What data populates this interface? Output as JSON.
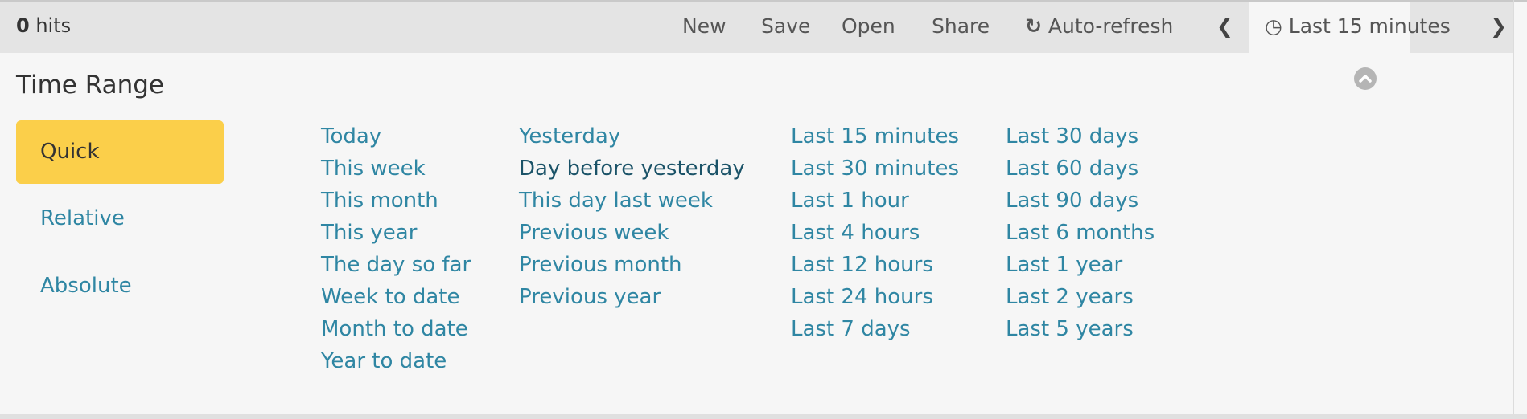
{
  "header": {
    "hits_count": "0",
    "hits_label": "hits",
    "buttons": [
      "New",
      "Save",
      "Open",
      "Share",
      "Auto-refresh"
    ],
    "time_label": "Last 15 minutes"
  },
  "panel": {
    "title": "Time Range",
    "modes": [
      "Quick",
      "Relative",
      "Absolute"
    ],
    "selected_mode": "Quick",
    "columns": [
      [
        "Today",
        "This week",
        "This month",
        "This year",
        "The day so far",
        "Week to date",
        "Month to date",
        "Year to date"
      ],
      [
        "Yesterday",
        "Day before yesterday",
        "This day last week",
        "Previous week",
        "Previous month",
        "Previous year"
      ],
      [
        "Last 15 minutes",
        "Last 30 minutes",
        "Last 1 hour",
        "Last 4 hours",
        "Last 12 hours",
        "Last 24 hours",
        "Last 7 days"
      ],
      [
        "Last 30 days",
        "Last 60 days",
        "Last 90 days",
        "Last 6 months",
        "Last 1 year",
        "Last 2 years",
        "Last 5 years"
      ]
    ],
    "hovered_option": "Day before yesterday"
  },
  "colors": {
    "accent": "#fbcf4a",
    "link": "#2f86a3",
    "link_hover": "#1b5368"
  }
}
